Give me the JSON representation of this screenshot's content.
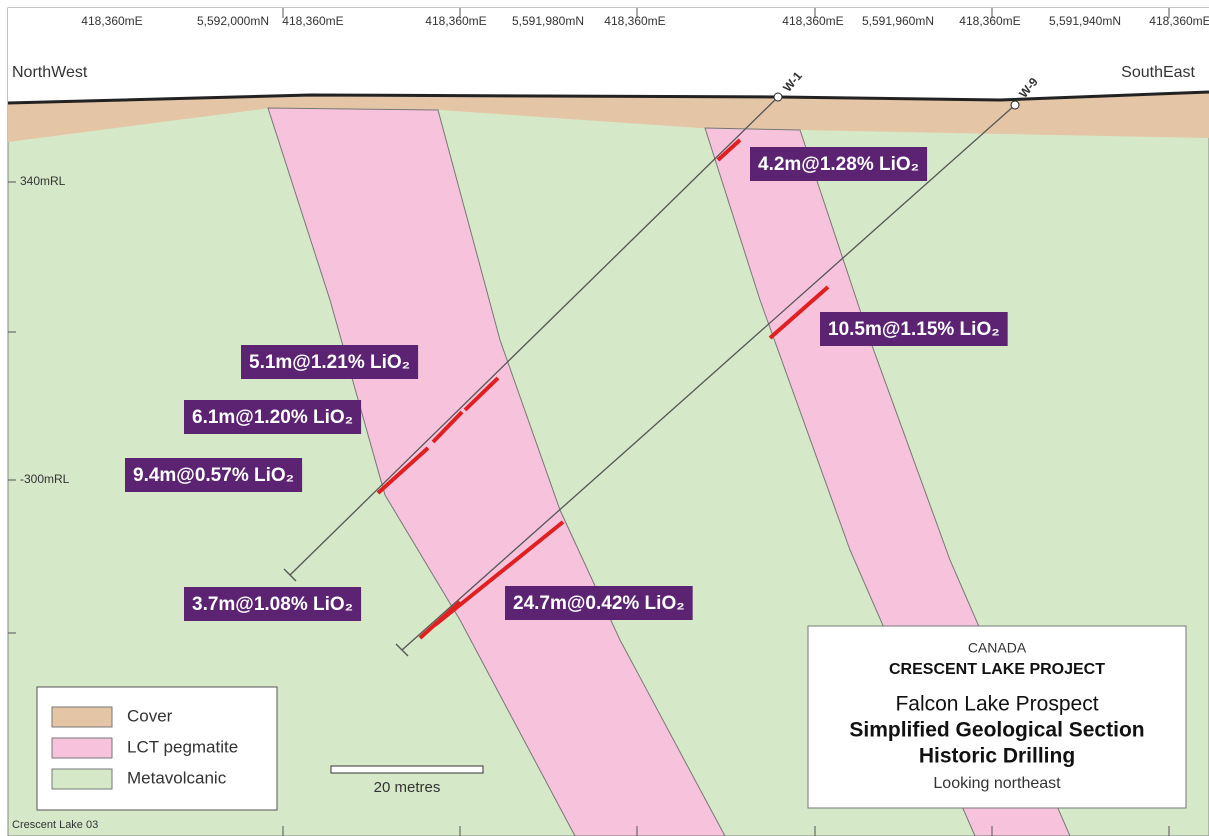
{
  "top_labels": [
    "418,360mE",
    "5,592,000mN",
    "418,360mE",
    "418,360mE",
    "5,591,980mN",
    "418,360mE",
    "418,360mE",
    "5,591,960mN",
    "418,360mE",
    "5,591,940mN",
    "418,360mE"
  ],
  "direction": {
    "left": "NorthWest",
    "right": "SouthEast"
  },
  "rl_labels": [
    "340mRL",
    "-300mRL"
  ],
  "holes": [
    "W-1",
    "W-9"
  ],
  "intercepts": [
    "4.2m@1.28% LiO₂",
    "10.5m@1.15% LiO₂",
    "5.1m@1.21% LiO₂",
    "6.1m@1.20% LiO₂",
    "9.4m@0.57% LiO₂",
    "3.7m@1.08% LiO₂",
    "24.7m@0.42% LiO₂"
  ],
  "legend": [
    "Cover",
    "LCT pegmatite",
    "Metavolcanic"
  ],
  "scale_label": "20 metres",
  "title_box": {
    "country": "CANADA",
    "project": "CRESCENT LAKE PROJECT",
    "prospect": "Falcon Lake Prospect",
    "section": "Simplified Geological Section",
    "drilling": "Historic Drilling",
    "view": "Looking northeast"
  },
  "figure_id": "Crescent Lake 03"
}
